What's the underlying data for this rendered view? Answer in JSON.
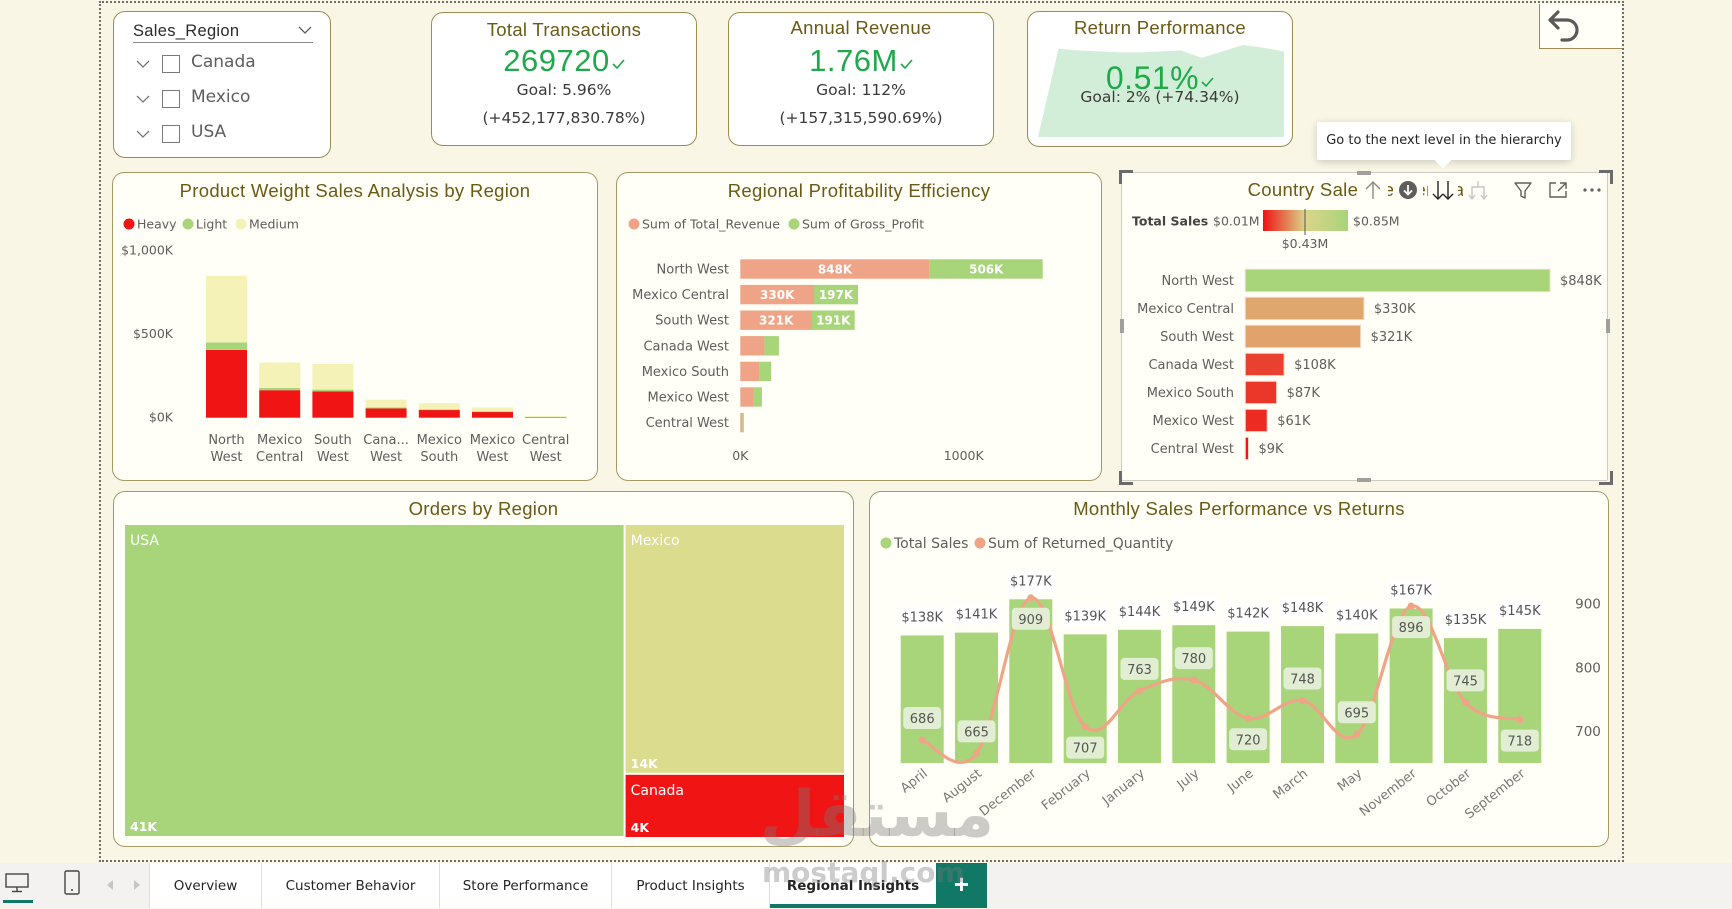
{
  "slicer": {
    "title": "Sales_Region",
    "items": [
      {
        "label": "Canada",
        "checked": false
      },
      {
        "label": "Mexico",
        "checked": false
      },
      {
        "label": "USA",
        "checked": false
      }
    ]
  },
  "kpis": {
    "transactions": {
      "title": "Total Transactions",
      "value": "269720",
      "status": "on-target",
      "goal": "Goal: 5.96%",
      "delta": "(+452,177,830.78%)"
    },
    "revenue": {
      "title": "Annual Revenue",
      "value": "1.76M",
      "status": "on-target",
      "goal": "Goal: 112%",
      "delta": "(+157,315,590.69%)"
    },
    "returns": {
      "title": "Return Performance",
      "value": "0.51%",
      "status": "on-target",
      "goal": "Goal: 2% (+74.34%)",
      "trend": [
        0,
        0.96,
        0.94,
        0.93,
        0.92,
        0.92,
        0.93,
        0.94,
        0.86,
        0.93,
        1.0,
        0.97,
        0.93
      ]
    }
  },
  "page_toolbar": {
    "undo_icon": "undo-icon"
  },
  "visual_header": {
    "icons": [
      "drill-up-icon",
      "drill-down-mode-icon",
      "next-level-icon",
      "expand-hierarchy-icon",
      "filter-icon",
      "focus-mode-icon",
      "more-options-icon"
    ],
    "tooltip": "Go to the next level in the hierarchy"
  },
  "colors": {
    "kpi_green": "#1fa94a",
    "title": "#6b5a16",
    "heavy": "#f01414",
    "light": "#a8d47a",
    "medium": "#f5f2b8",
    "revenue": "#f0a487",
    "profit": "#a8d47a",
    "accent": "#117865",
    "trend_fill": "#d3eed8"
  },
  "chart_data": [
    {
      "id": "product-weight",
      "type": "bar",
      "stacked": true,
      "title": "Product Weight Sales Analysis by Region",
      "xlabel": "",
      "ylabel": "",
      "categories": [
        "North West",
        "Mexico Central",
        "South West",
        "Canada West",
        "Mexico South",
        "Mexico West",
        "Central West"
      ],
      "category_labels": [
        [
          "North",
          "West"
        ],
        [
          "Mexico",
          "Central"
        ],
        [
          "South",
          "West"
        ],
        [
          "Cana...",
          "West"
        ],
        [
          "Mexico",
          "South"
        ],
        [
          "Mexico",
          "West"
        ],
        [
          "Central",
          "West"
        ]
      ],
      "series": [
        {
          "name": "Heavy",
          "color": "#f01414",
          "values": [
            405,
            164,
            158,
            55,
            48,
            36,
            6
          ]
        },
        {
          "name": "Light",
          "color": "#a8d47a",
          "values": [
            45,
            14,
            10,
            6,
            2,
            2,
            1
          ]
        },
        {
          "name": "Medium",
          "color": "#f5f2b8",
          "values": [
            398,
            152,
            153,
            47,
            37,
            23,
            2
          ]
        }
      ],
      "units": "$K",
      "ylim": [
        0,
        1000
      ],
      "yticks": [
        {
          "value": 0,
          "label": "$0K"
        },
        {
          "value": 500,
          "label": "$500K"
        },
        {
          "value": 1000,
          "label": "$1,000K"
        }
      ],
      "legend": "top-left",
      "grid": false
    },
    {
      "id": "regional-profitability",
      "type": "bar",
      "orientation": "horizontal",
      "stacked": true,
      "title": "Regional Profitability Efficiency",
      "categories": [
        "North West",
        "Mexico Central",
        "South West",
        "Canada West",
        "Mexico South",
        "Mexico West",
        "Central West"
      ],
      "series": [
        {
          "name": "Sum of Total_Revenue",
          "color": "#f0a487",
          "values": [
            848,
            330,
            321,
            108,
            87,
            61,
            9
          ],
          "labels": [
            "848K",
            "330K",
            "321K",
            null,
            null,
            null,
            null
          ]
        },
        {
          "name": "Sum of Gross_Profit",
          "color": "#a8d47a",
          "values": [
            506,
            197,
            191,
            65,
            51,
            36,
            5
          ],
          "labels": [
            "506K",
            "197K",
            "191K",
            null,
            null,
            null,
            null
          ]
        }
      ],
      "units": "K",
      "xlim": [
        0,
        1500
      ],
      "xticks": [
        {
          "value": 0,
          "label": "0K"
        },
        {
          "value": 1000,
          "label": "1000K"
        }
      ],
      "legend": "top-left",
      "grid": false
    },
    {
      "id": "country-sales",
      "type": "bar",
      "orientation": "horizontal",
      "title": "Country Sales Leaderboard",
      "categories": [
        "North West",
        "Mexico Central",
        "South West",
        "Canada West",
        "Mexico South",
        "Mexico West",
        "Central West"
      ],
      "values": [
        848,
        330,
        321,
        108,
        87,
        61,
        9
      ],
      "value_labels": [
        "$848K",
        "$330K",
        "$321K",
        "$108K",
        "$87K",
        "$61K",
        "$9K"
      ],
      "units": "$K",
      "xlim": [
        0,
        848
      ],
      "color_scale": {
        "title": "Total Sales",
        "min": 10,
        "mid": 430,
        "max": 850,
        "min_label": "$0.01M",
        "mid_label": "$0.43M",
        "max_label": "$0.85M",
        "colors": [
          "#ee1414",
          "#dad58a",
          "#a8d47a"
        ]
      },
      "legend": "top-left"
    },
    {
      "id": "orders-by-region",
      "type": "treemap",
      "title": "Orders by Region",
      "items": [
        {
          "label": "USA",
          "value": 41,
          "value_label": "41K",
          "color": "#a8d47a"
        },
        {
          "label": "Mexico",
          "value": 14.4,
          "value_label": "14K",
          "color": "#dcdc8e"
        },
        {
          "label": "Canada",
          "value": 3.6,
          "value_label": "4K",
          "color": "#f01414"
        }
      ]
    },
    {
      "id": "monthly-sales-returns",
      "type": "bar+line",
      "title": "Monthly Sales Performance vs Returns",
      "categories": [
        "April",
        "August",
        "December",
        "February",
        "January",
        "July",
        "June",
        "March",
        "May",
        "November",
        "October",
        "September"
      ],
      "series": [
        {
          "name": "Total Sales",
          "type": "bar",
          "axis": "left",
          "color": "#a8d47a",
          "values": [
            138,
            141,
            177,
            139,
            144,
            149,
            142,
            148,
            140,
            167,
            135,
            145
          ],
          "labels": [
            "$138K",
            "$141K",
            "$177K",
            "$139K",
            "$144K",
            "$149K",
            "$142K",
            "$148K",
            "$140K",
            "$167K",
            "$135K",
            "$145K"
          ]
        },
        {
          "name": "Sum of Returned_Quantity",
          "type": "line",
          "axis": "right",
          "color": "#f0a487",
          "values": [
            686,
            665,
            909,
            707,
            763,
            780,
            720,
            748,
            695,
            896,
            745,
            718
          ],
          "labels": [
            "686",
            "665",
            "909",
            "707",
            "763",
            "780",
            "720",
            "748",
            "695",
            "896",
            "745",
            "718"
          ]
        }
      ],
      "units": "$K",
      "ylim": [
        0,
        200
      ],
      "y2lim": [
        650,
        940
      ],
      "y2ticks": [
        {
          "value": 700,
          "label": "700"
        },
        {
          "value": 800,
          "label": "800"
        },
        {
          "value": 900,
          "label": "900"
        }
      ],
      "legend": "top-left",
      "grid": false
    }
  ],
  "footer": {
    "view_icons": [
      "desktop-layout-icon",
      "mobile-layout-icon"
    ],
    "tabs": [
      {
        "label": "Overview",
        "active": false
      },
      {
        "label": "Customer Behavior",
        "active": false
      },
      {
        "label": "Store Performance",
        "active": false
      },
      {
        "label": "Product Insights",
        "active": false
      },
      {
        "label": "Regional Insights",
        "active": true
      }
    ],
    "add_page_label": "+"
  },
  "watermark": {
    "logo": "مستقل",
    "text": "mostaql.com"
  }
}
